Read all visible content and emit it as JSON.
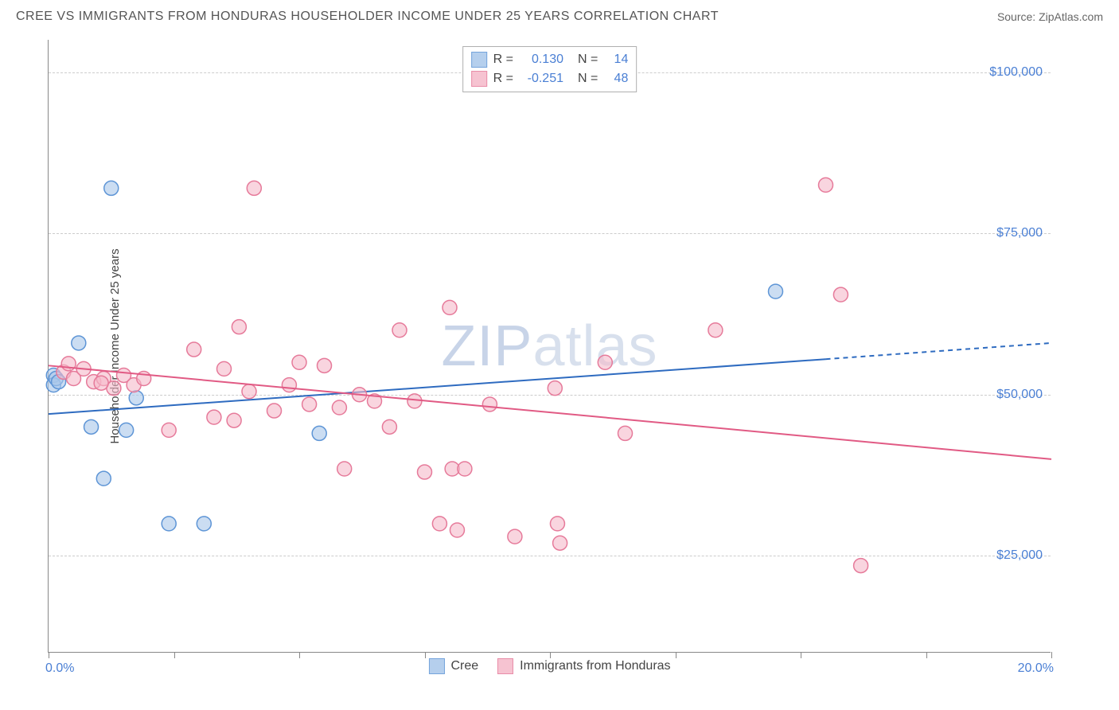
{
  "title": "CREE VS IMMIGRANTS FROM HONDURAS HOUSEHOLDER INCOME UNDER 25 YEARS CORRELATION CHART",
  "source": "Source: ZipAtlas.com",
  "watermark_left": "ZIP",
  "watermark_right": "atlas",
  "chart": {
    "type": "scatter-with-trend",
    "y_label": "Householder Income Under 25 years",
    "x_min": 0.0,
    "x_max": 20.0,
    "x_min_label": "0.0%",
    "x_max_label": "20.0%",
    "x_ticks": [
      0,
      2.5,
      5,
      7.5,
      10,
      12.5,
      15,
      17.5,
      20
    ],
    "y_min": 10000,
    "y_max": 105000,
    "y_ticks": [
      25000,
      50000,
      75000,
      100000
    ],
    "y_tick_labels": [
      "$25,000",
      "$50,000",
      "$75,000",
      "$100,000"
    ],
    "background_color": "#ffffff",
    "grid_color": "#cccccc",
    "axis_color": "#888888",
    "tick_label_color": "#4a7fd4",
    "marker_radius": 9,
    "marker_stroke_width": 1.5,
    "marker_fill_opacity": 0.25,
    "trend_line_width": 2
  },
  "series": [
    {
      "name": "Cree",
      "color_stroke": "#5e95d6",
      "color_fill": "#a9c7ea",
      "trend_color": "#2e6bc0",
      "R_label": "R =",
      "R": "0.130",
      "N_label": "N =",
      "N": "14",
      "trend": {
        "x1": 0,
        "y1": 47000,
        "x2": 15.5,
        "y2": 55500,
        "solid_end_x": 15.5,
        "dash_end_x": 20,
        "dash_end_y": 58000
      },
      "points": [
        [
          0.1,
          53000
        ],
        [
          0.1,
          51500
        ],
        [
          0.15,
          52500
        ],
        [
          0.2,
          52000
        ],
        [
          0.6,
          58000
        ],
        [
          0.85,
          45000
        ],
        [
          1.25,
          82000
        ],
        [
          1.55,
          44500
        ],
        [
          1.1,
          37000
        ],
        [
          1.75,
          49500
        ],
        [
          2.4,
          30000
        ],
        [
          3.1,
          30000
        ],
        [
          5.4,
          44000
        ],
        [
          14.5,
          66000
        ]
      ]
    },
    {
      "name": "Immigrants from Honduras",
      "color_stroke": "#e67a9a",
      "color_fill": "#f5b9c9",
      "trend_color": "#e15a84",
      "R_label": "R =",
      "R": "-0.251",
      "N_label": "N =",
      "N": "48",
      "trend": {
        "x1": 0,
        "y1": 54500,
        "x2": 20,
        "y2": 40000,
        "solid_end_x": 20,
        "dash_end_x": 20,
        "dash_end_y": 40000
      },
      "points": [
        [
          0.3,
          53500
        ],
        [
          0.5,
          52500
        ],
        [
          0.7,
          54000
        ],
        [
          0.9,
          52000
        ],
        [
          1.1,
          52500
        ],
        [
          1.3,
          51000
        ],
        [
          1.5,
          53000
        ],
        [
          1.7,
          51500
        ],
        [
          1.9,
          52500
        ],
        [
          2.4,
          44500
        ],
        [
          2.9,
          57000
        ],
        [
          3.3,
          46500
        ],
        [
          3.5,
          54000
        ],
        [
          3.7,
          46000
        ],
        [
          3.8,
          60500
        ],
        [
          4.0,
          50500
        ],
        [
          4.1,
          82000
        ],
        [
          4.5,
          47500
        ],
        [
          4.8,
          51500
        ],
        [
          5.0,
          55000
        ],
        [
          5.2,
          48500
        ],
        [
          5.5,
          54500
        ],
        [
          5.8,
          48000
        ],
        [
          5.9,
          38500
        ],
        [
          6.2,
          50000
        ],
        [
          6.5,
          49000
        ],
        [
          6.8,
          45000
        ],
        [
          7.0,
          60000
        ],
        [
          7.3,
          49000
        ],
        [
          7.5,
          38000
        ],
        [
          7.8,
          30000
        ],
        [
          8.0,
          63500
        ],
        [
          8.05,
          38500
        ],
        [
          8.15,
          29000
        ],
        [
          8.3,
          38500
        ],
        [
          8.8,
          48500
        ],
        [
          9.3,
          28000
        ],
        [
          10.1,
          51000
        ],
        [
          10.15,
          30000
        ],
        [
          10.2,
          27000
        ],
        [
          11.1,
          55000
        ],
        [
          11.5,
          44000
        ],
        [
          13.3,
          60000
        ],
        [
          15.5,
          82500
        ],
        [
          15.8,
          65500
        ],
        [
          16.2,
          23500
        ],
        [
          0.4,
          54800
        ],
        [
          1.05,
          51800
        ]
      ]
    }
  ],
  "legend_bottom": [
    {
      "label": "Cree",
      "swatch_fill": "#a9c7ea",
      "swatch_stroke": "#5e95d6"
    },
    {
      "label": "Immigrants from Honduras",
      "swatch_fill": "#f5b9c9",
      "swatch_stroke": "#e67a9a"
    }
  ]
}
